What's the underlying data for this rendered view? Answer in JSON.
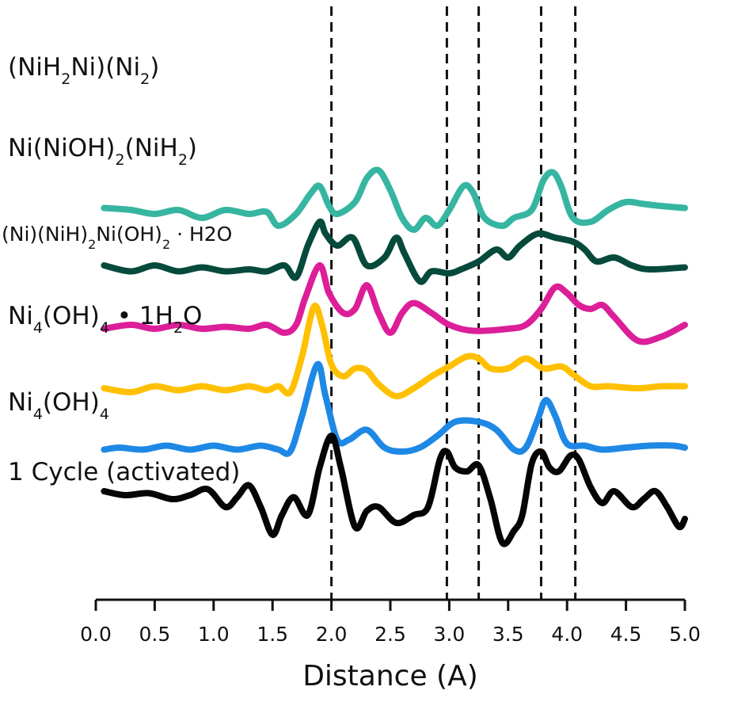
{
  "chart_data": {
    "type": "line",
    "title": "",
    "xlabel": "Distance (A)",
    "ylabel": "",
    "xlim": [
      0.0,
      5.0
    ],
    "x_ticks": [
      "0.0",
      "0.5",
      "1.0",
      "1.5",
      "2.0",
      "2.5",
      "3.0",
      "3.5",
      "4.0",
      "4.5",
      "5.0"
    ],
    "grid": false,
    "legend": "none",
    "reference_lines": [
      2.0,
      2.98,
      3.25,
      3.78,
      4.07
    ],
    "series": [
      {
        "name": "(NiH2Ni)(Ni2)",
        "label_parts": [
          [
            "(NiH",
            ""
          ],
          [
            "2",
            "sub"
          ],
          [
            "Ni)(Ni",
            ""
          ],
          [
            "2",
            "sub"
          ],
          [
            ")",
            ""
          ]
        ],
        "color": "#36b5a1",
        "offset": 7.5,
        "points": [
          [
            0.07,
            0.05
          ],
          [
            0.3,
            0.0
          ],
          [
            0.5,
            -0.1
          ],
          [
            0.7,
            0.0
          ],
          [
            0.9,
            -0.2
          ],
          [
            1.1,
            0.0
          ],
          [
            1.3,
            -0.1
          ],
          [
            1.45,
            -0.05
          ],
          [
            1.55,
            -0.4
          ],
          [
            1.7,
            -0.1
          ],
          [
            1.82,
            0.4
          ],
          [
            1.9,
            0.6
          ],
          [
            1.98,
            0.1
          ],
          [
            2.05,
            -0.1
          ],
          [
            2.2,
            0.2
          ],
          [
            2.3,
            0.8
          ],
          [
            2.4,
            1.0
          ],
          [
            2.5,
            0.5
          ],
          [
            2.6,
            -0.2
          ],
          [
            2.7,
            -0.5
          ],
          [
            2.8,
            -0.2
          ],
          [
            2.9,
            -0.4
          ],
          [
            3.0,
            0.0
          ],
          [
            3.12,
            0.6
          ],
          [
            3.2,
            0.45
          ],
          [
            3.3,
            -0.2
          ],
          [
            3.45,
            -0.4
          ],
          [
            3.55,
            -0.2
          ],
          [
            3.7,
            0.0
          ],
          [
            3.8,
            0.75
          ],
          [
            3.88,
            0.95
          ],
          [
            3.95,
            0.6
          ],
          [
            4.05,
            -0.2
          ],
          [
            4.2,
            -0.3
          ],
          [
            4.35,
            0.0
          ],
          [
            4.5,
            0.2
          ],
          [
            4.65,
            0.15
          ],
          [
            4.8,
            0.1
          ],
          [
            5.0,
            0.05
          ]
        ]
      },
      {
        "name": "Ni(NiOH)2(NiH2)",
        "label_parts": [
          [
            "Ni(NiOH)",
            ""
          ],
          [
            "2",
            "sub"
          ],
          [
            "(NiH",
            ""
          ],
          [
            "2",
            "sub"
          ],
          [
            ")",
            ""
          ]
        ],
        "color": "#064a3c",
        "offset": 6.0,
        "points": [
          [
            0.07,
            0.1
          ],
          [
            0.3,
            -0.05
          ],
          [
            0.5,
            0.1
          ],
          [
            0.7,
            -0.05
          ],
          [
            0.9,
            0.05
          ],
          [
            1.1,
            -0.05
          ],
          [
            1.3,
            0.0
          ],
          [
            1.45,
            -0.05
          ],
          [
            1.6,
            0.1
          ],
          [
            1.7,
            -0.2
          ],
          [
            1.8,
            0.6
          ],
          [
            1.9,
            1.2
          ],
          [
            1.95,
            0.9
          ],
          [
            2.05,
            0.6
          ],
          [
            2.18,
            0.8
          ],
          [
            2.3,
            0.1
          ],
          [
            2.45,
            0.3
          ],
          [
            2.55,
            0.8
          ],
          [
            2.62,
            0.4
          ],
          [
            2.75,
            -0.3
          ],
          [
            2.85,
            -0.05
          ],
          [
            3.0,
            -0.1
          ],
          [
            3.1,
            0.0
          ],
          [
            3.25,
            0.2
          ],
          [
            3.4,
            0.5
          ],
          [
            3.5,
            0.3
          ],
          [
            3.6,
            0.6
          ],
          [
            3.75,
            0.9
          ],
          [
            3.9,
            0.8
          ],
          [
            4.05,
            0.7
          ],
          [
            4.15,
            0.5
          ],
          [
            4.25,
            0.2
          ],
          [
            4.4,
            0.3
          ],
          [
            4.55,
            0.1
          ],
          [
            4.7,
            0.0
          ],
          [
            5.0,
            0.05
          ]
        ]
      },
      {
        "name": "(Ni)(NiH)2Ni(OH)2 · H2O",
        "label_parts": [
          [
            "(Ni)(NiH)",
            ""
          ],
          [
            "2",
            "sub"
          ],
          [
            "Ni(OH)",
            ""
          ],
          [
            "2",
            "sub"
          ],
          [
            " · H2O",
            ""
          ]
        ],
        "color": "#dc1e98",
        "offset": 4.5,
        "points": [
          [
            0.07,
            0.0
          ],
          [
            0.3,
            0.1
          ],
          [
            0.5,
            0.0
          ],
          [
            0.7,
            0.1
          ],
          [
            0.9,
            0.0
          ],
          [
            1.1,
            0.05
          ],
          [
            1.3,
            0.0
          ],
          [
            1.45,
            0.1
          ],
          [
            1.6,
            -0.1
          ],
          [
            1.7,
            0.1
          ],
          [
            1.78,
            0.8
          ],
          [
            1.9,
            1.6
          ],
          [
            1.98,
            0.9
          ],
          [
            2.1,
            0.4
          ],
          [
            2.2,
            0.5
          ],
          [
            2.3,
            1.1
          ],
          [
            2.4,
            0.4
          ],
          [
            2.5,
            -0.1
          ],
          [
            2.6,
            0.4
          ],
          [
            2.7,
            0.65
          ],
          [
            2.85,
            0.4
          ],
          [
            3.0,
            0.1
          ],
          [
            3.2,
            -0.05
          ],
          [
            3.5,
            0.0
          ],
          [
            3.65,
            0.1
          ],
          [
            3.78,
            0.5
          ],
          [
            3.9,
            1.05
          ],
          [
            4.0,
            0.9
          ],
          [
            4.1,
            0.6
          ],
          [
            4.2,
            0.5
          ],
          [
            4.3,
            0.6
          ],
          [
            4.4,
            0.3
          ],
          [
            4.6,
            -0.3
          ],
          [
            4.8,
            -0.2
          ],
          [
            5.0,
            0.1
          ]
        ]
      },
      {
        "name": "Ni4(OH)4 • 1H2O",
        "label_parts": [
          [
            "Ni",
            ""
          ],
          [
            "4",
            "sub"
          ],
          [
            "(OH)",
            ""
          ],
          [
            "4",
            "sub"
          ],
          [
            " • 1H",
            ""
          ],
          [
            "2",
            "sub"
          ],
          [
            "O",
            ""
          ]
        ],
        "color": "#ffc001",
        "offset": 3.0,
        "points": [
          [
            0.07,
            0.0
          ],
          [
            0.3,
            -0.1
          ],
          [
            0.5,
            0.05
          ],
          [
            0.7,
            -0.05
          ],
          [
            0.9,
            0.05
          ],
          [
            1.1,
            -0.05
          ],
          [
            1.3,
            0.05
          ],
          [
            1.45,
            -0.05
          ],
          [
            1.55,
            0.05
          ],
          [
            1.65,
            -0.1
          ],
          [
            1.75,
            0.8
          ],
          [
            1.85,
            2.05
          ],
          [
            1.92,
            1.6
          ],
          [
            2.0,
            0.6
          ],
          [
            2.1,
            0.3
          ],
          [
            2.2,
            0.5
          ],
          [
            2.3,
            0.45
          ],
          [
            2.4,
            0.1
          ],
          [
            2.55,
            -0.2
          ],
          [
            2.7,
            0.0
          ],
          [
            2.85,
            0.3
          ],
          [
            3.0,
            0.55
          ],
          [
            3.15,
            0.8
          ],
          [
            3.25,
            0.75
          ],
          [
            3.35,
            0.5
          ],
          [
            3.5,
            0.5
          ],
          [
            3.65,
            0.75
          ],
          [
            3.8,
            0.5
          ],
          [
            3.95,
            0.55
          ],
          [
            4.05,
            0.35
          ],
          [
            4.2,
            0.05
          ],
          [
            4.35,
            0.05
          ],
          [
            4.6,
            0.0
          ],
          [
            4.8,
            0.05
          ],
          [
            5.0,
            0.05
          ]
        ]
      },
      {
        "name": "Ni4(OH)4",
        "label_parts": [
          [
            "Ni",
            ""
          ],
          [
            "4",
            "sub"
          ],
          [
            "(OH)",
            ""
          ],
          [
            "4",
            "sub"
          ]
        ],
        "color": "#1e88e5",
        "offset": 1.5,
        "points": [
          [
            0.07,
            -0.05
          ],
          [
            0.2,
            0.0
          ],
          [
            0.4,
            -0.05
          ],
          [
            0.6,
            0.05
          ],
          [
            0.8,
            -0.05
          ],
          [
            1.0,
            0.05
          ],
          [
            1.2,
            -0.05
          ],
          [
            1.4,
            0.05
          ],
          [
            1.55,
            -0.05
          ],
          [
            1.65,
            -0.1
          ],
          [
            1.75,
            0.8
          ],
          [
            1.88,
            2.1
          ],
          [
            1.95,
            1.3
          ],
          [
            2.05,
            0.2
          ],
          [
            2.15,
            0.2
          ],
          [
            2.3,
            0.45
          ],
          [
            2.45,
            0.0
          ],
          [
            2.6,
            -0.1
          ],
          [
            2.75,
            0.0
          ],
          [
            2.9,
            0.3
          ],
          [
            3.05,
            0.65
          ],
          [
            3.25,
            0.65
          ],
          [
            3.4,
            0.45
          ],
          [
            3.55,
            -0.05
          ],
          [
            3.65,
            0.0
          ],
          [
            3.75,
            0.7
          ],
          [
            3.82,
            1.2
          ],
          [
            3.9,
            0.8
          ],
          [
            4.0,
            0.1
          ],
          [
            4.15,
            0.05
          ],
          [
            4.3,
            -0.05
          ],
          [
            4.5,
            0.0
          ],
          [
            4.7,
            0.05
          ],
          [
            4.9,
            0.05
          ],
          [
            5.0,
            0.0
          ]
        ]
      },
      {
        "name": "1 Cycle (activated)",
        "label_parts": [
          [
            "1 Cycle (activated)",
            ""
          ]
        ],
        "color": "#050505",
        "offset": 0.0,
        "points": [
          [
            0.07,
            0.4
          ],
          [
            0.25,
            0.3
          ],
          [
            0.45,
            0.35
          ],
          [
            0.65,
            0.2
          ],
          [
            0.8,
            0.3
          ],
          [
            0.95,
            0.45
          ],
          [
            1.1,
            0.0
          ],
          [
            1.2,
            0.25
          ],
          [
            1.3,
            0.55
          ],
          [
            1.4,
            0.0
          ],
          [
            1.5,
            -0.7
          ],
          [
            1.58,
            -0.2
          ],
          [
            1.68,
            0.25
          ],
          [
            1.8,
            -0.2
          ],
          [
            1.9,
            1.0
          ],
          [
            2.0,
            1.8
          ],
          [
            2.08,
            1.0
          ],
          [
            2.2,
            -0.5
          ],
          [
            2.3,
            -0.1
          ],
          [
            2.4,
            0.0
          ],
          [
            2.55,
            -0.4
          ],
          [
            2.7,
            -0.2
          ],
          [
            2.82,
            0.0
          ],
          [
            2.92,
            1.2
          ],
          [
            2.98,
            1.4
          ],
          [
            3.05,
            1.0
          ],
          [
            3.15,
            0.9
          ],
          [
            3.25,
            1.05
          ],
          [
            3.35,
            0.2
          ],
          [
            3.45,
            -0.9
          ],
          [
            3.55,
            -0.6
          ],
          [
            3.62,
            -0.2
          ],
          [
            3.7,
            1.1
          ],
          [
            3.78,
            1.4
          ],
          [
            3.85,
            1.0
          ],
          [
            3.93,
            0.9
          ],
          [
            4.03,
            1.3
          ],
          [
            4.1,
            1.2
          ],
          [
            4.2,
            0.5
          ],
          [
            4.3,
            0.1
          ],
          [
            4.4,
            0.4
          ],
          [
            4.55,
            0.0
          ],
          [
            4.65,
            0.2
          ],
          [
            4.75,
            0.4
          ],
          [
            4.85,
            0.0
          ],
          [
            4.95,
            -0.5
          ],
          [
            5.0,
            -0.3
          ]
        ]
      }
    ]
  }
}
